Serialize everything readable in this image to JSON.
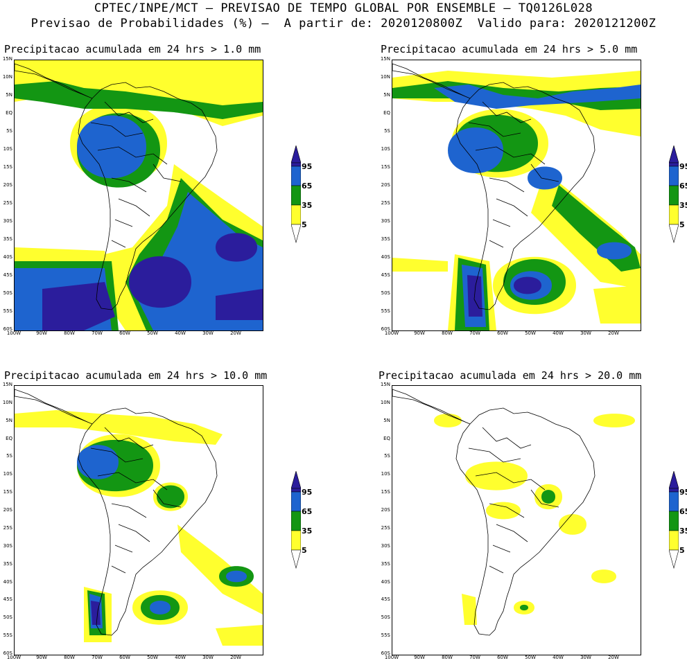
{
  "header": {
    "line1": "CPTEC/INPE/MCT – PREVISAO DE TEMPO GLOBAL POR ENSEMBLE – TQ0126L028",
    "line2": "Previsao de Probabilidades (%) –  A partir de: 2020120800Z  Valido para: 2020121200Z"
  },
  "axes": {
    "lat_labels": [
      "15N",
      "10N",
      "5N",
      "EQ",
      "5S",
      "10S",
      "15S",
      "20S",
      "25S",
      "30S",
      "35S",
      "40S",
      "45S",
      "50S",
      "55S",
      "60S"
    ],
    "lon_labels": [
      "100W",
      "90W",
      "80W",
      "70W",
      "60W",
      "50W",
      "40W",
      "30W",
      "20W"
    ]
  },
  "colorbar": {
    "levels": [
      "95",
      "65",
      "35",
      "5"
    ],
    "colors": {
      "c95": "#2b1d9c",
      "c65": "#1e64cf",
      "c35": "#139613",
      "c5": "#ffff2e"
    }
  },
  "panels": [
    {
      "title": "Precipitacao acumulada em 24 hrs > 1.0 mm"
    },
    {
      "title": "Precipitacao acumulada em 24 hrs > 5.0 mm"
    },
    {
      "title": "Precipitacao acumulada em 24 hrs > 10.0 mm"
    },
    {
      "title": "Precipitacao acumulada em 24 hrs > 20.0 mm"
    }
  ]
}
